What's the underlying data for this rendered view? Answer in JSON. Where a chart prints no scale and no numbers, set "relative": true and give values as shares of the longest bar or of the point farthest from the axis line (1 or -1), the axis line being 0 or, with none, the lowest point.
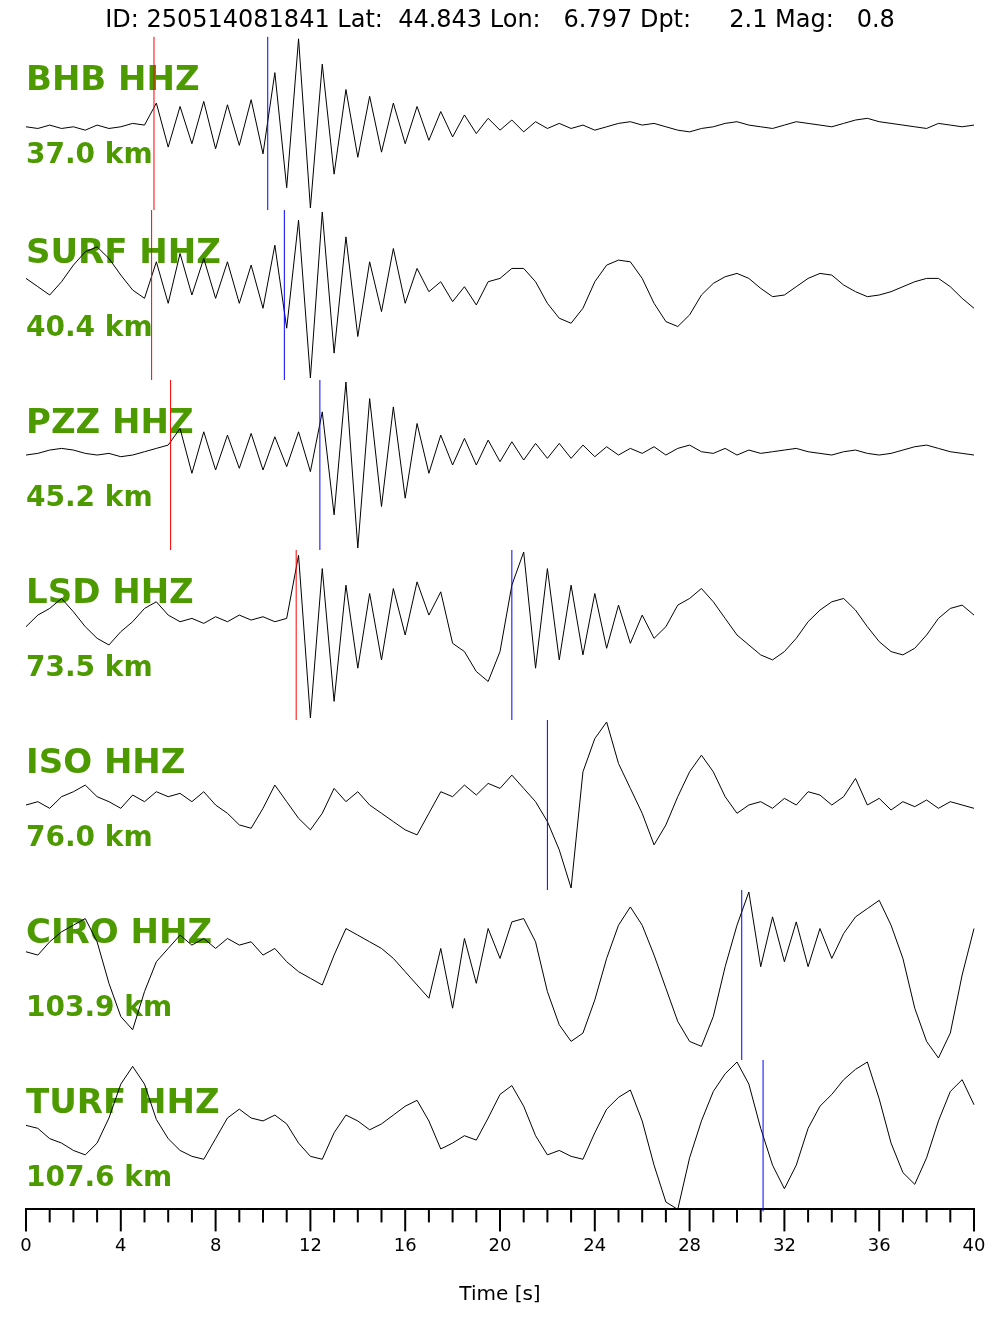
{
  "chart_data": [
    {
      "type": "line",
      "title": "ID: 250514081841 Lat:  44.843 Lon:   6.797 Dpt:     2.1 Mag:   0.8",
      "annotations": [
        "BHB HHZ",
        "37.0 km"
      ],
      "relative": true,
      "xlim": [
        0,
        40
      ],
      "tick_labels": false,
      "legend": false,
      "marker": "none",
      "x": [
        0,
        0.5,
        1,
        1.5,
        2,
        2.5,
        3,
        3.5,
        4,
        4.5,
        5,
        5.5,
        6,
        6.5,
        7,
        7.5,
        8,
        8.5,
        9,
        9.5,
        10,
        10.5,
        11,
        11.5,
        12,
        12.5,
        13,
        13.5,
        14,
        14.5,
        15,
        15.5,
        16,
        16.5,
        17,
        17.5,
        18,
        18.5,
        19,
        19.5,
        20,
        20.5,
        21,
        21.5,
        22,
        22.5,
        23,
        23.5,
        24,
        24.5,
        25,
        25.5,
        26,
        26.5,
        27,
        27.5,
        28,
        28.5,
        29,
        29.5,
        30,
        30.5,
        31,
        31.5,
        32,
        32.5,
        33,
        33.5,
        34,
        34.5,
        35,
        35.5,
        36,
        36.5,
        37,
        37.5,
        38,
        38.5,
        39,
        39.5,
        40
      ],
      "ref_lines": [
        {
          "axis": "x",
          "value": 5.4,
          "color": "#ff0000"
        },
        {
          "axis": "x",
          "value": 10.2,
          "color": "#0000ff"
        }
      ],
      "series": [
        {
          "color": "#000000",
          "values": [
            0.48,
            0.47,
            0.49,
            0.47,
            0.48,
            0.46,
            0.49,
            0.47,
            0.48,
            0.5,
            0.49,
            0.62,
            0.36,
            0.6,
            0.38,
            0.63,
            0.35,
            0.61,
            0.37,
            0.64,
            0.32,
            0.8,
            0.12,
            1.0,
            0.0,
            0.85,
            0.2,
            0.7,
            0.3,
            0.66,
            0.33,
            0.62,
            0.38,
            0.6,
            0.4,
            0.57,
            0.42,
            0.55,
            0.44,
            0.53,
            0.46,
            0.52,
            0.45,
            0.51,
            0.47,
            0.5,
            0.47,
            0.49,
            0.46,
            0.48,
            0.5,
            0.51,
            0.49,
            0.5,
            0.48,
            0.46,
            0.45,
            0.47,
            0.48,
            0.5,
            0.51,
            0.49,
            0.48,
            0.47,
            0.49,
            0.51,
            0.5,
            0.49,
            0.48,
            0.5,
            0.52,
            0.53,
            0.51,
            0.5,
            0.49,
            0.48,
            0.47,
            0.5,
            0.49,
            0.48,
            0.49
          ]
        }
      ]
    },
    {
      "type": "line",
      "annotations": [
        "SURF HHZ",
        "40.4 km"
      ],
      "relative": true,
      "xlim": [
        0,
        40
      ],
      "tick_labels": false,
      "legend": false,
      "marker": "none",
      "x": [
        0,
        0.5,
        1,
        1.5,
        2,
        2.5,
        3,
        3.5,
        4,
        4.5,
        5,
        5.5,
        6,
        6.5,
        7,
        7.5,
        8,
        8.5,
        9,
        9.5,
        10,
        10.5,
        11,
        11.5,
        12,
        12.5,
        13,
        13.5,
        14,
        14.5,
        15,
        15.5,
        16,
        16.5,
        17,
        17.5,
        18,
        18.5,
        19,
        19.5,
        20,
        20.5,
        21,
        21.5,
        22,
        22.5,
        23,
        23.5,
        24,
        24.5,
        25,
        25.5,
        26,
        26.5,
        27,
        27.5,
        28,
        28.5,
        29,
        29.5,
        30,
        30.5,
        31,
        31.5,
        32,
        32.5,
        33,
        33.5,
        34,
        34.5,
        35,
        35.5,
        36,
        36.5,
        37,
        37.5,
        38,
        38.5,
        39,
        39.5,
        40
      ],
      "ref_lines": [
        {
          "axis": "x",
          "value": 5.3,
          "color": "#ff0000"
        },
        {
          "axis": "x",
          "value": 10.9,
          "color": "#0000ff"
        }
      ],
      "series": [
        {
          "color": "#000000",
          "values": [
            0.6,
            0.55,
            0.5,
            0.58,
            0.68,
            0.76,
            0.79,
            0.72,
            0.62,
            0.53,
            0.48,
            0.7,
            0.45,
            0.75,
            0.5,
            0.72,
            0.48,
            0.7,
            0.45,
            0.68,
            0.42,
            0.8,
            0.3,
            0.95,
            0.0,
            1.0,
            0.15,
            0.85,
            0.25,
            0.7,
            0.4,
            0.78,
            0.45,
            0.66,
            0.52,
            0.58,
            0.46,
            0.55,
            0.44,
            0.58,
            0.6,
            0.66,
            0.66,
            0.58,
            0.45,
            0.36,
            0.33,
            0.42,
            0.58,
            0.68,
            0.71,
            0.7,
            0.6,
            0.45,
            0.34,
            0.31,
            0.38,
            0.5,
            0.57,
            0.61,
            0.63,
            0.6,
            0.54,
            0.49,
            0.5,
            0.55,
            0.6,
            0.63,
            0.62,
            0.56,
            0.52,
            0.49,
            0.5,
            0.52,
            0.55,
            0.58,
            0.6,
            0.6,
            0.55,
            0.48,
            0.42
          ]
        }
      ]
    },
    {
      "type": "line",
      "annotations": [
        "PZZ HHZ",
        "45.2 km"
      ],
      "relative": true,
      "xlim": [
        0,
        40
      ],
      "tick_labels": false,
      "legend": false,
      "marker": "none",
      "x": [
        0,
        0.5,
        1,
        1.5,
        2,
        2.5,
        3,
        3.5,
        4,
        4.5,
        5,
        5.5,
        6,
        6.5,
        7,
        7.5,
        8,
        8.5,
        9,
        9.5,
        10,
        10.5,
        11,
        11.5,
        12,
        12.5,
        13,
        13.5,
        14,
        14.5,
        15,
        15.5,
        16,
        16.5,
        17,
        17.5,
        18,
        18.5,
        19,
        19.5,
        20,
        20.5,
        21,
        21.5,
        22,
        22.5,
        23,
        23.5,
        24,
        24.5,
        25,
        25.5,
        26,
        26.5,
        27,
        27.5,
        28,
        28.5,
        29,
        29.5,
        30,
        30.5,
        31,
        31.5,
        32,
        32.5,
        33,
        33.5,
        34,
        34.5,
        35,
        35.5,
        36,
        36.5,
        37,
        37.5,
        38,
        38.5,
        39,
        39.5,
        40
      ],
      "ref_lines": [
        {
          "axis": "x",
          "value": 6.1,
          "color": "#ff0000"
        },
        {
          "axis": "x",
          "value": 12.4,
          "color": "#0000ff"
        }
      ],
      "series": [
        {
          "color": "#000000",
          "values": [
            0.56,
            0.57,
            0.59,
            0.6,
            0.59,
            0.57,
            0.56,
            0.57,
            0.55,
            0.56,
            0.58,
            0.6,
            0.62,
            0.72,
            0.45,
            0.7,
            0.47,
            0.68,
            0.48,
            0.69,
            0.47,
            0.67,
            0.49,
            0.7,
            0.46,
            0.82,
            0.2,
            1.0,
            0.0,
            0.9,
            0.25,
            0.85,
            0.3,
            0.75,
            0.45,
            0.68,
            0.5,
            0.66,
            0.5,
            0.65,
            0.52,
            0.64,
            0.53,
            0.63,
            0.54,
            0.63,
            0.54,
            0.62,
            0.55,
            0.61,
            0.56,
            0.6,
            0.57,
            0.61,
            0.56,
            0.6,
            0.62,
            0.58,
            0.57,
            0.6,
            0.56,
            0.59,
            0.57,
            0.58,
            0.59,
            0.6,
            0.58,
            0.57,
            0.56,
            0.58,
            0.59,
            0.57,
            0.56,
            0.57,
            0.59,
            0.61,
            0.62,
            0.6,
            0.58,
            0.57,
            0.56
          ]
        }
      ]
    },
    {
      "type": "line",
      "annotations": [
        "LSD HHZ",
        "73.5 km"
      ],
      "relative": true,
      "xlim": [
        0,
        40
      ],
      "tick_labels": false,
      "legend": false,
      "marker": "none",
      "x": [
        0,
        0.5,
        1,
        1.5,
        2,
        2.5,
        3,
        3.5,
        4,
        4.5,
        5,
        5.5,
        6,
        6.5,
        7,
        7.5,
        8,
        8.5,
        9,
        9.5,
        10,
        10.5,
        11,
        11.5,
        12,
        12.5,
        13,
        13.5,
        14,
        14.5,
        15,
        15.5,
        16,
        16.5,
        17,
        17.5,
        18,
        18.5,
        19,
        19.5,
        20,
        20.5,
        21,
        21.5,
        22,
        22.5,
        23,
        23.5,
        24,
        24.5,
        25,
        25.5,
        26,
        26.5,
        27,
        27.5,
        28,
        28.5,
        29,
        29.5,
        30,
        30.5,
        31,
        31.5,
        32,
        32.5,
        33,
        33.5,
        34,
        34.5,
        35,
        35.5,
        36,
        36.5,
        37,
        37.5,
        38,
        38.5,
        39,
        39.5,
        40
      ],
      "ref_lines": [
        {
          "axis": "x",
          "value": 11.4,
          "color": "#ff0000"
        },
        {
          "axis": "x",
          "value": 20.5,
          "color": "#0000ff"
        }
      ],
      "series": [
        {
          "color": "#000000",
          "values": [
            0.55,
            0.62,
            0.66,
            0.72,
            0.64,
            0.55,
            0.48,
            0.44,
            0.52,
            0.58,
            0.66,
            0.7,
            0.62,
            0.58,
            0.6,
            0.57,
            0.61,
            0.58,
            0.62,
            0.59,
            0.61,
            0.58,
            0.6,
            0.98,
            0.0,
            0.9,
            0.1,
            0.8,
            0.3,
            0.75,
            0.35,
            0.78,
            0.5,
            0.82,
            0.62,
            0.76,
            0.45,
            0.4,
            0.28,
            0.22,
            0.4,
            0.8,
            1.0,
            0.3,
            0.9,
            0.35,
            0.8,
            0.38,
            0.75,
            0.42,
            0.68,
            0.45,
            0.62,
            0.48,
            0.55,
            0.68,
            0.72,
            0.78,
            0.7,
            0.6,
            0.5,
            0.44,
            0.38,
            0.35,
            0.4,
            0.48,
            0.58,
            0.65,
            0.7,
            0.72,
            0.65,
            0.55,
            0.46,
            0.4,
            0.38,
            0.42,
            0.5,
            0.6,
            0.66,
            0.68,
            0.62
          ]
        }
      ]
    },
    {
      "type": "line",
      "annotations": [
        "ISO HHZ",
        "76.0 km"
      ],
      "relative": true,
      "xlim": [
        0,
        40
      ],
      "tick_labels": false,
      "legend": false,
      "marker": "none",
      "x": [
        0,
        0.5,
        1,
        1.5,
        2,
        2.5,
        3,
        3.5,
        4,
        4.5,
        5,
        5.5,
        6,
        6.5,
        7,
        7.5,
        8,
        8.5,
        9,
        9.5,
        10,
        10.5,
        11,
        11.5,
        12,
        12.5,
        13,
        13.5,
        14,
        14.5,
        15,
        15.5,
        16,
        16.5,
        17,
        17.5,
        18,
        18.5,
        19,
        19.5,
        20,
        20.5,
        21,
        21.5,
        22,
        22.5,
        23,
        23.5,
        24,
        24.5,
        25,
        25.5,
        26,
        26.5,
        27,
        27.5,
        28,
        28.5,
        29,
        29.5,
        30,
        30.5,
        31,
        31.5,
        32,
        32.5,
        33,
        33.5,
        34,
        34.5,
        35,
        35.5,
        36,
        36.5,
        37,
        37.5,
        38,
        38.5,
        39,
        39.5,
        40
      ],
      "ref_lines": [
        {
          "axis": "x",
          "value": 22.0,
          "color": "#0000ff"
        }
      ],
      "series": [
        {
          "color": "#000000",
          "values": [
            0.5,
            0.52,
            0.48,
            0.55,
            0.58,
            0.62,
            0.55,
            0.52,
            0.48,
            0.56,
            0.52,
            0.58,
            0.55,
            0.57,
            0.52,
            0.58,
            0.5,
            0.45,
            0.38,
            0.36,
            0.48,
            0.62,
            0.52,
            0.42,
            0.35,
            0.45,
            0.6,
            0.52,
            0.58,
            0.5,
            0.45,
            0.4,
            0.35,
            0.32,
            0.45,
            0.58,
            0.55,
            0.62,
            0.56,
            0.63,
            0.6,
            0.68,
            0.6,
            0.52,
            0.4,
            0.23,
            0.0,
            0.7,
            0.9,
            1.0,
            0.75,
            0.6,
            0.45,
            0.26,
            0.38,
            0.55,
            0.7,
            0.8,
            0.7,
            0.55,
            0.45,
            0.5,
            0.52,
            0.48,
            0.54,
            0.5,
            0.58,
            0.56,
            0.5,
            0.55,
            0.66,
            0.5,
            0.54,
            0.47,
            0.52,
            0.49,
            0.53,
            0.48,
            0.52,
            0.5,
            0.48
          ]
        }
      ]
    },
    {
      "type": "line",
      "annotations": [
        "CIRO HHZ",
        "103.9 km"
      ],
      "relative": true,
      "xlim": [
        0,
        40
      ],
      "tick_labels": false,
      "legend": false,
      "marker": "none",
      "x": [
        0,
        0.5,
        1,
        1.5,
        2,
        2.5,
        3,
        3.5,
        4,
        4.5,
        5,
        5.5,
        6,
        6.5,
        7,
        7.5,
        8,
        8.5,
        9,
        9.5,
        10,
        10.5,
        11,
        11.5,
        12,
        12.5,
        13,
        13.5,
        14,
        14.5,
        15,
        15.5,
        16,
        16.5,
        17,
        17.5,
        18,
        18.5,
        19,
        19.5,
        20,
        20.5,
        21,
        21.5,
        22,
        22.5,
        23,
        23.5,
        24,
        24.5,
        25,
        25.5,
        26,
        26.5,
        27,
        27.5,
        28,
        28.5,
        29,
        29.5,
        30,
        30.5,
        31,
        31.5,
        32,
        32.5,
        33,
        33.5,
        34,
        34.5,
        35,
        35.5,
        36,
        36.5,
        37,
        37.5,
        38,
        38.5,
        39,
        39.5,
        40
      ],
      "ref_lines": [
        {
          "axis": "x",
          "value": 30.2,
          "color": "#0000ff"
        }
      ],
      "series": [
        {
          "color": "#000000",
          "values": [
            0.64,
            0.62,
            0.7,
            0.76,
            0.8,
            0.84,
            0.7,
            0.45,
            0.25,
            0.17,
            0.4,
            0.58,
            0.66,
            0.74,
            0.68,
            0.72,
            0.66,
            0.72,
            0.68,
            0.7,
            0.62,
            0.66,
            0.58,
            0.52,
            0.48,
            0.44,
            0.62,
            0.78,
            0.74,
            0.7,
            0.66,
            0.6,
            0.52,
            0.44,
            0.36,
            0.66,
            0.3,
            0.72,
            0.45,
            0.78,
            0.6,
            0.82,
            0.84,
            0.7,
            0.4,
            0.2,
            0.1,
            0.15,
            0.35,
            0.6,
            0.8,
            0.91,
            0.8,
            0.62,
            0.42,
            0.22,
            0.1,
            0.07,
            0.25,
            0.55,
            0.8,
            1.0,
            0.55,
            0.85,
            0.58,
            0.82,
            0.55,
            0.78,
            0.6,
            0.75,
            0.85,
            0.9,
            0.95,
            0.8,
            0.6,
            0.3,
            0.1,
            0.0,
            0.15,
            0.5,
            0.78
          ]
        }
      ]
    },
    {
      "type": "line",
      "annotations": [
        "TURF HHZ",
        "107.6 km"
      ],
      "relative": true,
      "xlim": [
        0,
        40
      ],
      "xlabel": "Time [s]",
      "tick_labels": "x",
      "legend": false,
      "marker": "none",
      "xticks": [
        0,
        {
          "value": 1,
          "label": null
        },
        {
          "value": 2,
          "label": null
        },
        {
          "value": 3,
          "label": null
        },
        4,
        {
          "value": 5,
          "label": null
        },
        {
          "value": 6,
          "label": null
        },
        {
          "value": 7,
          "label": null
        },
        8,
        {
          "value": 9,
          "label": null
        },
        {
          "value": 10,
          "label": null
        },
        {
          "value": 11,
          "label": null
        },
        12,
        {
          "value": 13,
          "label": null
        },
        {
          "value": 14,
          "label": null
        },
        {
          "value": 15,
          "label": null
        },
        16,
        {
          "value": 17,
          "label": null
        },
        {
          "value": 18,
          "label": null
        },
        {
          "value": 19,
          "label": null
        },
        20,
        {
          "value": 21,
          "label": null
        },
        {
          "value": 22,
          "label": null
        },
        {
          "value": 23,
          "label": null
        },
        24,
        {
          "value": 25,
          "label": null
        },
        {
          "value": 26,
          "label": null
        },
        {
          "value": 27,
          "label": null
        },
        28,
        {
          "value": 29,
          "label": null
        },
        {
          "value": 30,
          "label": null
        },
        {
          "value": 31,
          "label": null
        },
        32,
        {
          "value": 33,
          "label": null
        },
        {
          "value": 34,
          "label": null
        },
        {
          "value": 35,
          "label": null
        },
        36,
        {
          "value": 37,
          "label": null
        },
        {
          "value": 38,
          "label": null
        },
        {
          "value": 39,
          "label": null
        },
        40
      ],
      "x": [
        0,
        0.5,
        1,
        1.5,
        2,
        2.5,
        3,
        3.5,
        4,
        4.5,
        5,
        5.5,
        6,
        6.5,
        7,
        7.5,
        8,
        8.5,
        9,
        9.5,
        10,
        10.5,
        11,
        11.5,
        12,
        12.5,
        13,
        13.5,
        14,
        14.5,
        15,
        15.5,
        16,
        16.5,
        17,
        17.5,
        18,
        18.5,
        19,
        19.5,
        20,
        20.5,
        21,
        21.5,
        22,
        22.5,
        23,
        23.5,
        24,
        24.5,
        25,
        25.5,
        26,
        26.5,
        27,
        27.5,
        28,
        28.5,
        29,
        29.5,
        30,
        30.5,
        31,
        31.5,
        32,
        32.5,
        33,
        33.5,
        34,
        34.5,
        35,
        35.5,
        36,
        36.5,
        37,
        37.5,
        38,
        38.5,
        39,
        39.5,
        40
      ],
      "ref_lines": [
        {
          "axis": "x",
          "value": 31.1,
          "color": "#0000ff"
        }
      ],
      "series": [
        {
          "color": "#000000",
          "values": [
            0.57,
            0.55,
            0.48,
            0.45,
            0.4,
            0.37,
            0.45,
            0.62,
            0.85,
            0.97,
            0.85,
            0.61,
            0.48,
            0.4,
            0.36,
            0.34,
            0.48,
            0.62,
            0.68,
            0.62,
            0.6,
            0.64,
            0.58,
            0.45,
            0.36,
            0.34,
            0.52,
            0.64,
            0.6,
            0.54,
            0.58,
            0.64,
            0.7,
            0.74,
            0.6,
            0.41,
            0.45,
            0.5,
            0.47,
            0.62,
            0.78,
            0.84,
            0.7,
            0.5,
            0.37,
            0.4,
            0.36,
            0.34,
            0.52,
            0.68,
            0.76,
            0.81,
            0.6,
            0.3,
            0.05,
            0.0,
            0.35,
            0.6,
            0.8,
            0.92,
            1.0,
            0.85,
            0.55,
            0.3,
            0.14,
            0.3,
            0.55,
            0.7,
            0.78,
            0.88,
            0.95,
            1.0,
            0.75,
            0.45,
            0.25,
            0.17,
            0.35,
            0.6,
            0.8,
            0.88,
            0.71
          ]
        }
      ]
    }
  ]
}
